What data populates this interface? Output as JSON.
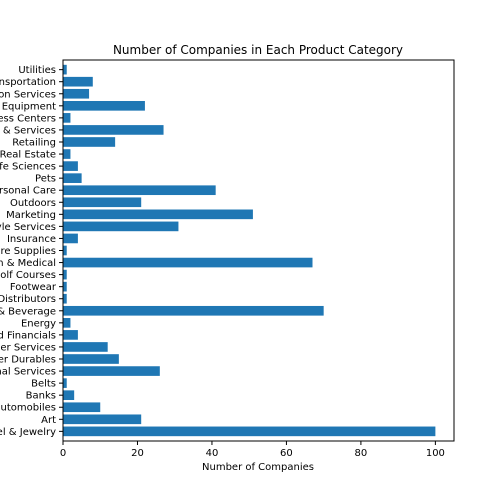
{
  "chart_data": {
    "type": "bar",
    "orientation": "horizontal",
    "title": "Number of Companies in Each Product Category",
    "xlabel": "Number of Companies",
    "ylabel": "",
    "xlim": [
      0,
      105
    ],
    "xticks": [
      0,
      20,
      40,
      60,
      80,
      100
    ],
    "grid": false,
    "legend": "none",
    "bar_color": "#1f77b4",
    "categories": [
      "Apparel & Jewelry",
      "Art",
      "Automobiles",
      "Banks",
      "Belts",
      "Commercial & Professional Services",
      "Consumer Durables",
      "Consumer Services",
      "Diversified Financials",
      "Energy",
      "Food & Beverage",
      "Food Distributors",
      "Footwear",
      "Golf Courses",
      "Health & Medical",
      "Healthcare Supplies",
      "Insurance",
      "Lifestyle Services",
      "Marketing",
      "Outdoors",
      "Personal Care",
      "Pets",
      "Life Sciences",
      "Real Estate",
      "Retailing",
      "Products & Services",
      "Fitness Centers",
      "Equipment",
      "Transportation Services",
      "Transportation",
      "Utilities"
    ],
    "tick_labels": [
      "el & Jewelry",
      "Art",
      "utomobiles",
      "Banks",
      "Belts",
      "nal Services",
      "er Durables",
      "er Services",
      "d Financials",
      "Energy",
      "& Beverage",
      "Distributors",
      "Footwear",
      "olf Courses",
      "h & Medical",
      "re Supplies",
      "Insurance",
      "yle Services",
      "Marketing",
      "Outdoors",
      "rsonal Care",
      "Pets",
      "fe Sciences",
      "Real Estate",
      "Retailing",
      "& Services",
      "ess Centers",
      "Equipment",
      "on Services",
      "nsportation",
      "Utilities"
    ],
    "values": [
      100,
      21,
      10,
      3,
      1,
      26,
      15,
      12,
      4,
      2,
      70,
      1,
      1,
      1,
      67,
      1,
      4,
      31,
      51,
      21,
      41,
      5,
      4,
      2,
      14,
      27,
      2,
      22,
      7,
      8,
      1
    ]
  }
}
